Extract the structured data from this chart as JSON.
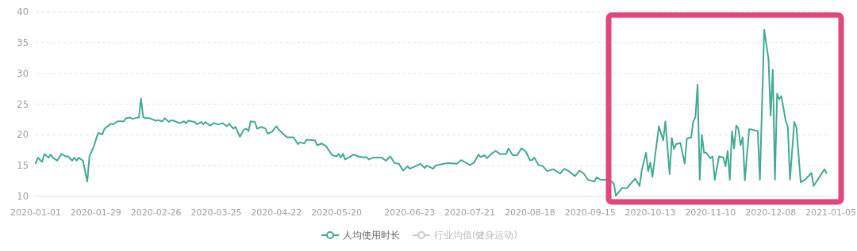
{
  "chart_data": {
    "type": "line",
    "xlim": [
      "2020-01-01",
      "2021-01-05"
    ],
    "xticks": [
      "2020-01-01",
      "2020-01-29",
      "2020-02-26",
      "2020-03-25",
      "2020-04-22",
      "2020-05-20",
      "2020-06-23",
      "2020-07-21",
      "2020-08-18",
      "2020-09-15",
      "2020-10-13",
      "2020-11-10",
      "2020-12-08",
      "2021-01-05"
    ],
    "ylim": [
      10,
      40
    ],
    "yticks": [
      10,
      15,
      20,
      25,
      30,
      35,
      40
    ],
    "grid": "y",
    "legend": "bottom",
    "series": [
      {
        "name": "人均使用时长",
        "color": "#43a995",
        "x": [
          "2020-01-01",
          "2020-01-02",
          "2020-01-04",
          "2020-01-05",
          "2020-01-07",
          "2020-01-08",
          "2020-01-09",
          "2020-01-11",
          "2020-01-13",
          "2020-01-15",
          "2020-01-16",
          "2020-01-18",
          "2020-01-19",
          "2020-01-20",
          "2020-01-21",
          "2020-01-23",
          "2020-01-25",
          "2020-01-26",
          "2020-01-28",
          "2020-01-30",
          "2020-02-01",
          "2020-02-02",
          "2020-02-05",
          "2020-02-06",
          "2020-02-08",
          "2020-02-11",
          "2020-02-12",
          "2020-02-14",
          "2020-02-15",
          "2020-02-17",
          "2020-02-18",
          "2020-02-19",
          "2020-02-20",
          "2020-02-21",
          "2020-02-23",
          "2020-02-26",
          "2020-02-27",
          "2020-02-29",
          "2020-03-01",
          "2020-03-03",
          "2020-03-04",
          "2020-03-06",
          "2020-03-08",
          "2020-03-10",
          "2020-03-11",
          "2020-03-12",
          "2020-03-15",
          "2020-03-16",
          "2020-03-18",
          "2020-03-19",
          "2020-03-20",
          "2020-03-22",
          "2020-03-24",
          "2020-03-26",
          "2020-03-28",
          "2020-03-30",
          "2020-03-31",
          "2020-04-02",
          "2020-04-03",
          "2020-04-05",
          "2020-04-07",
          "2020-04-08",
          "2020-04-09",
          "2020-04-10",
          "2020-04-12",
          "2020-04-13",
          "2020-04-15",
          "2020-04-17",
          "2020-04-18",
          "2020-04-20",
          "2020-04-22",
          "2020-04-23",
          "2020-04-25",
          "2020-04-27",
          "2020-04-30",
          "2020-05-02",
          "2020-05-03",
          "2020-05-05",
          "2020-05-06",
          "2020-05-10",
          "2020-05-11",
          "2020-05-13",
          "2020-05-15",
          "2020-05-18",
          "2020-05-20",
          "2020-05-21",
          "2020-05-22",
          "2020-05-23",
          "2020-05-24",
          "2020-05-28",
          "2020-05-30",
          "2020-06-02",
          "2020-06-03",
          "2020-06-04",
          "2020-06-06",
          "2020-06-10",
          "2020-06-12",
          "2020-06-14",
          "2020-06-16",
          "2020-06-18",
          "2020-06-20",
          "2020-06-22",
          "2020-06-23",
          "2020-06-27",
          "2020-06-28",
          "2020-06-30",
          "2020-07-01",
          "2020-07-04",
          "2020-07-05",
          "2020-07-09",
          "2020-07-11",
          "2020-07-15",
          "2020-07-17",
          "2020-07-21",
          "2020-07-23",
          "2020-07-25",
          "2020-07-26",
          "2020-07-28",
          "2020-07-29",
          "2020-07-31",
          "2020-08-02",
          "2020-08-04",
          "2020-08-07",
          "2020-08-08",
          "2020-08-10",
          "2020-08-12",
          "2020-08-14",
          "2020-08-16",
          "2020-08-18",
          "2020-08-19",
          "2020-08-20",
          "2020-08-22",
          "2020-08-24",
          "2020-08-26",
          "2020-08-29",
          "2020-09-01",
          "2020-09-03",
          "2020-09-05",
          "2020-09-08",
          "2020-09-10",
          "2020-09-12",
          "2020-09-14",
          "2020-09-17",
          "2020-09-18",
          "2020-09-20",
          "2020-09-24",
          "2020-09-26",
          "2020-09-27",
          "2020-09-30",
          "2020-10-02",
          "2020-10-06",
          "2020-10-08",
          "2020-10-09",
          "2020-10-11",
          "2020-10-12",
          "2020-10-13",
          "2020-10-14",
          "2020-10-17",
          "2020-10-19",
          "2020-10-20",
          "2020-10-22",
          "2020-10-23",
          "2020-10-24",
          "2020-10-25",
          "2020-10-27",
          "2020-10-29",
          "2020-10-30",
          "2020-11-01",
          "2020-11-02",
          "2020-11-03",
          "2020-11-04",
          "2020-11-05",
          "2020-11-06",
          "2020-11-07",
          "2020-11-08",
          "2020-11-10",
          "2020-11-11",
          "2020-11-12",
          "2020-11-14",
          "2020-11-16",
          "2020-11-17",
          "2020-11-18",
          "2020-11-19",
          "2020-11-20",
          "2020-11-21",
          "2020-11-22",
          "2020-11-23",
          "2020-11-24",
          "2020-11-25",
          "2020-11-26",
          "2020-11-28",
          "2020-11-29",
          "2020-12-02",
          "2020-12-03",
          "2020-12-05",
          "2020-12-07",
          "2020-12-08",
          "2020-12-09",
          "2020-12-10",
          "2020-12-11",
          "2020-12-12",
          "2020-12-13",
          "2020-12-15",
          "2020-12-16",
          "2020-12-17",
          "2020-12-19",
          "2020-12-20",
          "2020-12-22",
          "2020-12-24",
          "2020-12-27",
          "2020-12-28",
          "2020-12-31",
          "2021-01-02",
          "2021-01-03"
        ],
        "values": [
          15.4,
          16.3,
          15.6,
          16.9,
          16.3,
          16.8,
          16.3,
          15.8,
          16.9,
          16.5,
          16.5,
          15.8,
          16.3,
          15.8,
          16.3,
          15.8,
          12.4,
          16.5,
          18.1,
          20.3,
          20.1,
          21.0,
          21.8,
          21.7,
          22.2,
          22.2,
          22.7,
          22.8,
          22.6,
          22.8,
          22.8,
          25.9,
          22.9,
          22.7,
          22.7,
          22.3,
          22.4,
          22.2,
          22.7,
          22.1,
          22.4,
          22.2,
          21.9,
          22.2,
          21.9,
          22.3,
          22.1,
          21.7,
          22.1,
          21.7,
          22.1,
          21.5,
          21.9,
          21.7,
          21.9,
          21.4,
          21.8,
          21.0,
          21.3,
          19.7,
          20.9,
          21.0,
          20.6,
          22.2,
          22.1,
          21.0,
          21.3,
          21.0,
          20.2,
          20.5,
          21.4,
          20.9,
          20.2,
          19.6,
          19.6,
          18.5,
          18.8,
          18.6,
          19.2,
          19.1,
          18.3,
          18.6,
          18.2,
          16.7,
          16.5,
          16.9,
          16.3,
          16.9,
          16.0,
          16.8,
          16.5,
          16.3,
          16.4,
          16.0,
          16.3,
          16.3,
          15.8,
          16.5,
          15.4,
          15.3,
          14.2,
          14.9,
          14.5,
          15.1,
          15.3,
          14.6,
          15.0,
          14.5,
          15.0,
          15.3,
          15.4,
          15.3,
          15.9,
          15.1,
          15.5,
          16.8,
          16.4,
          16.7,
          16.2,
          16.9,
          17.4,
          16.9,
          16.9,
          17.8,
          16.7,
          16.7,
          17.8,
          17.3,
          15.9,
          15.9,
          16.3,
          15.1,
          14.9,
          14.1,
          14.4,
          13.7,
          14.5,
          14.1,
          13.3,
          14.2,
          13.7,
          12.7,
          12.4,
          13.1,
          12.7,
          12.7,
          12.1,
          10.1,
          11.4,
          11.3,
          12.9,
          11.7,
          14.2,
          17.1,
          14.1,
          15.5,
          13.2,
          21.4,
          19.1,
          22.2,
          13.6,
          19.5,
          17.7,
          18.5,
          18.7,
          15.3,
          19.4,
          19.6,
          22.2,
          22.9,
          28.2,
          12.7,
          20.0,
          17.1,
          17.1,
          16.2,
          16.5,
          12.7,
          16.5,
          16.3,
          14.9,
          17.4,
          12.7,
          20.6,
          17.8,
          21.5,
          21.0,
          18.3,
          19.6,
          12.6,
          20.9,
          20.9,
          20.6,
          12.7,
          37.1,
          32.4,
          23.1,
          30.6,
          12.7,
          26.7,
          25.8,
          26.3,
          22.3,
          21.3,
          12.7,
          22.1,
          21.2,
          12.3,
          12.7,
          13.8,
          11.7,
          13.3,
          14.4,
          13.8
        ]
      },
      {
        "name": "行业均值(健身运动)",
        "color": "#cccccc"
      }
    ]
  }
}
